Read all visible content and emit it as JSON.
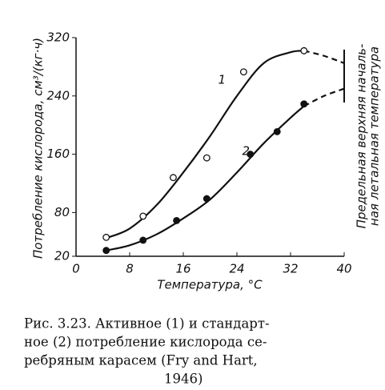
{
  "chart_data": {
    "type": "scatter",
    "x_label": "Температура, °C",
    "y_label": "Потребление кислорода, см³/(кг·ч)",
    "side_label": [
      "Предельная верхняя началь-",
      "ная летальная температура"
    ],
    "xlim": [
      0,
      40
    ],
    "xticks": [
      0,
      8,
      16,
      24,
      32,
      40
    ],
    "ylim": [
      20,
      320
    ],
    "yticks": [
      20,
      80,
      160,
      240,
      320
    ],
    "color": "#111",
    "series": [
      {
        "label": "1",
        "marker": "open",
        "x": [
          4.5,
          10,
          14.5,
          19.5,
          25,
          34
        ],
        "values": [
          46,
          75,
          128,
          155,
          273,
          302
        ],
        "fit": {
          "x": [
            4.5,
            8,
            12,
            16,
            20,
            24,
            28,
            32,
            34
          ],
          "values": [
            45,
            58,
            90,
            135,
            185,
            240,
            285,
            300,
            302
          ]
        },
        "extension": {
          "x": [
            34,
            37,
            40
          ],
          "values": [
            302,
            295,
            285
          ]
        }
      },
      {
        "label": "2",
        "marker": "filled",
        "x": [
          4.5,
          10,
          15,
          19.5,
          26,
          30,
          34
        ],
        "values": [
          28,
          42,
          69,
          99,
          160,
          191,
          229
        ],
        "fit": {
          "x": [
            4.5,
            8,
            12,
            16,
            20,
            24,
            28,
            32,
            34
          ],
          "values": [
            28,
            35,
            50,
            72,
            98,
            135,
            175,
            210,
            226
          ]
        },
        "extension": {
          "x": [
            34,
            37,
            40
          ],
          "values": [
            226,
            240,
            250
          ]
        }
      }
    ],
    "caption": [
      "Рис. 3.23. Активное (1) и стандарт-",
      "ное (2)  потребление  кислорода  се-",
      "ребряным  карасем  (Fry  and  Hart,",
      "1946)"
    ]
  }
}
